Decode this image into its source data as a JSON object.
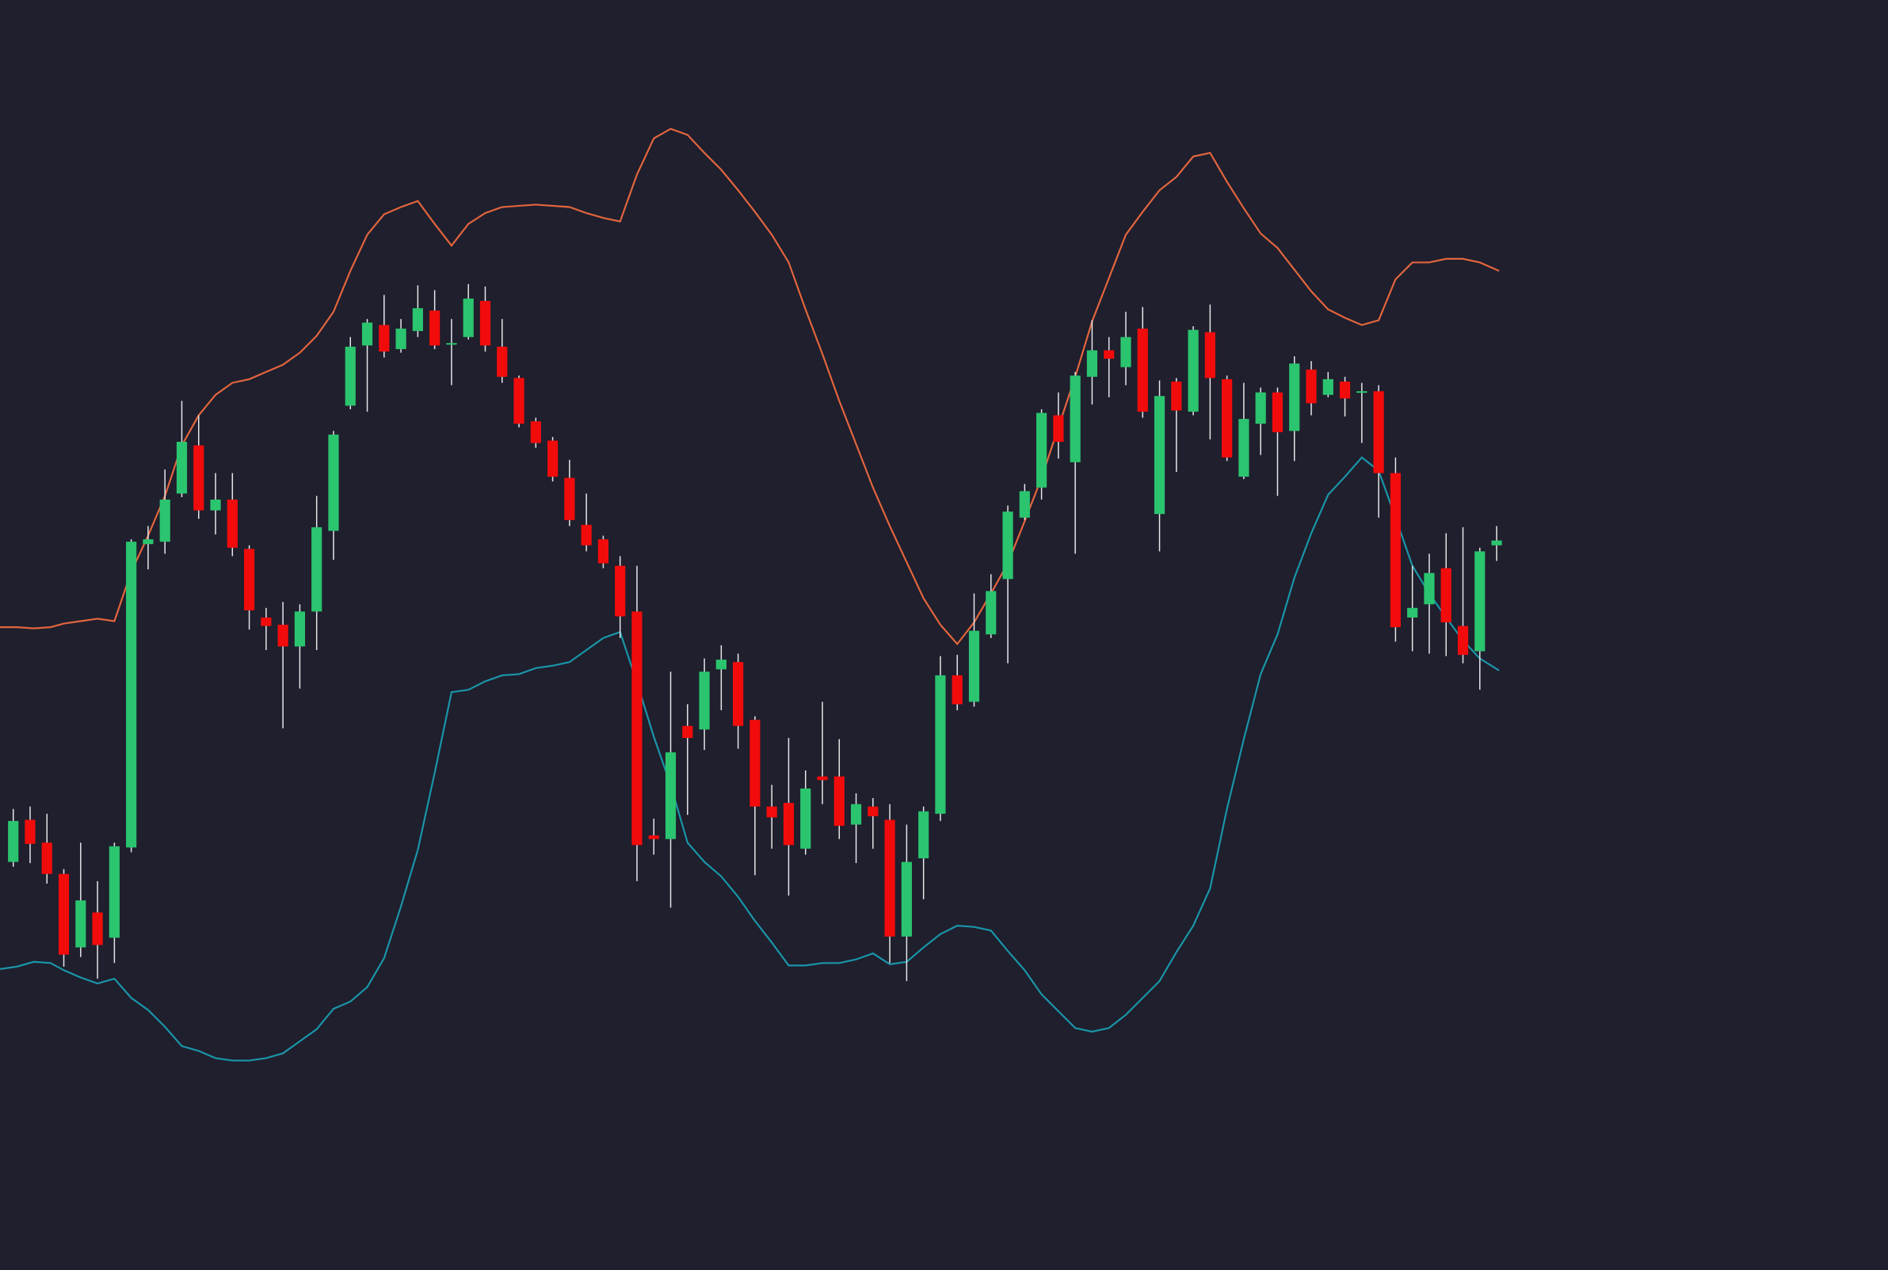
{
  "chart_data": {
    "type": "candlestick",
    "xlim": [
      0,
      1568
    ],
    "ylim": [
      -55,
      1000
    ],
    "up_color": "#2bc46f",
    "down_color": "#f20b0b",
    "x": [
      11,
      25,
      39,
      53,
      67,
      81,
      95,
      109,
      123,
      137,
      151,
      165,
      179,
      193,
      207,
      221,
      235,
      249,
      263,
      277,
      291,
      305,
      319,
      333,
      347,
      361,
      375,
      389,
      403,
      417,
      431,
      445,
      459,
      473,
      487,
      501,
      515,
      529,
      543,
      557,
      571,
      585,
      599,
      613,
      627,
      641,
      655,
      669,
      683,
      697,
      711,
      725,
      739,
      753,
      767,
      781,
      795,
      809,
      823,
      837,
      851,
      865,
      879,
      893,
      907,
      921,
      935,
      949,
      963,
      977,
      991,
      1005,
      1019,
      1033,
      1047,
      1061,
      1075,
      1089,
      1103,
      1117,
      1131,
      1145,
      1159,
      1173,
      1187,
      1201,
      1215,
      1229,
      1243
    ],
    "open": [
      284,
      319,
      300,
      274,
      213,
      242,
      221,
      296,
      548,
      550,
      590,
      630,
      576,
      585,
      544,
      487,
      481,
      463,
      492,
      559,
      663,
      713,
      730,
      710,
      725,
      742,
      714,
      720,
      750,
      712,
      686,
      650,
      634,
      603,
      564,
      552,
      530,
      492,
      306,
      303,
      397,
      394,
      444,
      450,
      402,
      330,
      333,
      295,
      355,
      355,
      315,
      330,
      319,
      222,
      287,
      324,
      439,
      417,
      473,
      519,
      570,
      595,
      655,
      616,
      687,
      709,
      695,
      727,
      573,
      683,
      658,
      724,
      685,
      604,
      648,
      674,
      642,
      693,
      672,
      683,
      674,
      675,
      607,
      487,
      498,
      528,
      480,
      459,
      547
    ],
    "high": [
      328,
      330,
      324,
      278,
      300,
      268,
      300,
      552,
      563,
      610,
      667,
      655,
      607,
      607,
      547,
      495,
      500,
      498,
      588,
      642,
      720,
      735,
      755,
      735,
      763,
      759,
      735,
      764,
      762,
      735,
      688,
      653,
      637,
      618,
      590,
      555,
      538,
      530,
      320,
      442,
      415,
      453,
      464,
      457,
      405,
      348,
      387,
      360,
      417,
      386,
      341,
      337,
      332,
      315,
      330,
      455,
      456,
      507,
      523,
      580,
      598,
      660,
      674,
      691,
      734,
      720,
      741,
      745,
      684,
      686,
      729,
      747,
      688,
      682,
      678,
      678,
      704,
      700,
      691,
      687,
      682,
      680,
      620,
      530,
      540,
      557,
      562,
      545,
      563
    ],
    "low": [
      280,
      283,
      266,
      197,
      205,
      187,
      200,
      292,
      527,
      540,
      587,
      569,
      556,
      538,
      477,
      460,
      395,
      428,
      460,
      535,
      660,
      658,
      703,
      707,
      720,
      710,
      680,
      718,
      708,
      682,
      645,
      628,
      600,
      563,
      542,
      528,
      470,
      268,
      290,
      246,
      323,
      377,
      410,
      378,
      273,
      295,
      256,
      290,
      332,
      303,
      283,
      295,
      200,
      185,
      253,
      318,
      410,
      413,
      470,
      449,
      568,
      585,
      619,
      540,
      664,
      670,
      680,
      653,
      542,
      608,
      655,
      635,
      617,
      602,
      622,
      588,
      617,
      655,
      670,
      654,
      632,
      570,
      467,
      459,
      457,
      455,
      449,
      427,
      534
    ],
    "close": [
      318,
      299,
      274,
      207,
      252,
      215,
      297,
      550,
      552,
      585,
      633,
      576,
      585,
      545,
      493,
      480,
      463,
      492,
      562,
      639,
      712,
      732,
      708,
      727,
      744,
      713,
      715,
      752,
      713,
      687,
      648,
      632,
      604,
      568,
      547,
      532,
      488,
      298,
      303,
      375,
      387,
      442,
      452,
      397,
      330,
      321,
      298,
      345,
      352,
      314,
      332,
      322,
      222,
      284,
      326,
      439,
      415,
      476,
      509,
      575,
      592,
      657,
      633,
      688,
      709,
      702,
      720,
      658,
      671,
      659,
      726,
      686,
      620,
      652,
      674,
      641,
      698,
      665,
      685,
      669,
      675,
      607,
      479,
      495,
      524,
      483,
      456,
      542,
      551
    ],
    "series": [
      {
        "color": "#e2653e",
        "x": [
          0,
          14,
          28,
          42,
          53,
          67,
          81,
          95,
          109,
          123,
          137,
          151,
          165,
          179,
          193,
          207,
          221,
          235,
          249,
          263,
          277,
          291,
          305,
          319,
          333,
          347,
          361,
          375,
          389,
          403,
          417,
          445,
          473,
          487,
          501,
          515,
          529,
          543,
          557,
          571,
          585,
          599,
          613,
          627,
          641,
          655,
          669,
          683,
          697,
          711,
          725,
          739,
          753,
          767,
          781,
          795,
          809,
          823,
          837,
          851,
          865,
          879,
          893,
          907,
          921,
          935,
          949,
          963,
          977,
          991,
          1005,
          1019,
          1033,
          1047,
          1061,
          1075,
          1089,
          1103,
          1117,
          1131,
          1145,
          1159,
          1173,
          1187,
          1201,
          1215,
          1229,
          1245
        ],
        "values": [
          479,
          479,
          478,
          479,
          482,
          484,
          486,
          484,
          525,
          555,
          588,
          630,
          655,
          672,
          682,
          685,
          691,
          697,
          707,
          721,
          741,
          775,
          805,
          822,
          828,
          833,
          814,
          796,
          814,
          823,
          828,
          830,
          828,
          823,
          819,
          816,
          855,
          885,
          893,
          888,
          873,
          859,
          842,
          824,
          805,
          782,
          743,
          706,
          667,
          631,
          595,
          563,
          533,
          503,
          481,
          465,
          483,
          507,
          532,
          567,
          603,
          645,
          687,
          733,
          769,
          805,
          824,
          842,
          853,
          870,
          873,
          849,
          827,
          806,
          794,
          776,
          758,
          743,
          736,
          730,
          734,
          768,
          782,
          782,
          785,
          785,
          782,
          775
        ]
      },
      {
        "color": "#1a95a8",
        "x": [
          0,
          14,
          28,
          42,
          53,
          67,
          81,
          95,
          109,
          123,
          137,
          151,
          165,
          179,
          193,
          207,
          221,
          235,
          249,
          263,
          277,
          291,
          305,
          319,
          333,
          347,
          361,
          375,
          389,
          403,
          417,
          431,
          445,
          459,
          473,
          487,
          501,
          515,
          529,
          543,
          557,
          571,
          585,
          599,
          613,
          627,
          641,
          655,
          669,
          683,
          697,
          711,
          725,
          739,
          753,
          767,
          781,
          795,
          809,
          823,
          837,
          851,
          865,
          879,
          893,
          907,
          921,
          935,
          949,
          963,
          977,
          991,
          1005,
          1019,
          1033,
          1047,
          1061,
          1075,
          1089,
          1103,
          1117,
          1131,
          1145,
          1159,
          1173,
          1187,
          1201,
          1215,
          1229,
          1245
        ],
        "values": [
          195,
          197,
          201,
          200,
          194,
          188,
          183,
          187,
          171,
          161,
          147,
          131,
          127,
          121,
          119,
          119,
          121,
          125,
          135,
          145,
          162,
          168,
          180,
          204,
          247,
          294,
          358,
          425,
          427,
          434,
          439,
          440,
          445,
          447,
          450,
          460,
          470,
          475,
          433,
          388,
          348,
          300,
          284,
          272,
          255,
          235,
          217,
          198,
          198,
          200,
          200,
          203,
          208,
          199,
          201,
          213,
          224,
          231,
          230,
          227,
          210,
          194,
          174,
          160,
          146,
          143,
          146,
          157,
          171,
          185,
          209,
          231,
          262,
          328,
          386,
          440,
          473,
          520,
          557,
          589,
          604,
          620,
          609,
          570,
          530,
          507,
          487,
          468,
          453,
          443
        ]
      }
    ]
  }
}
